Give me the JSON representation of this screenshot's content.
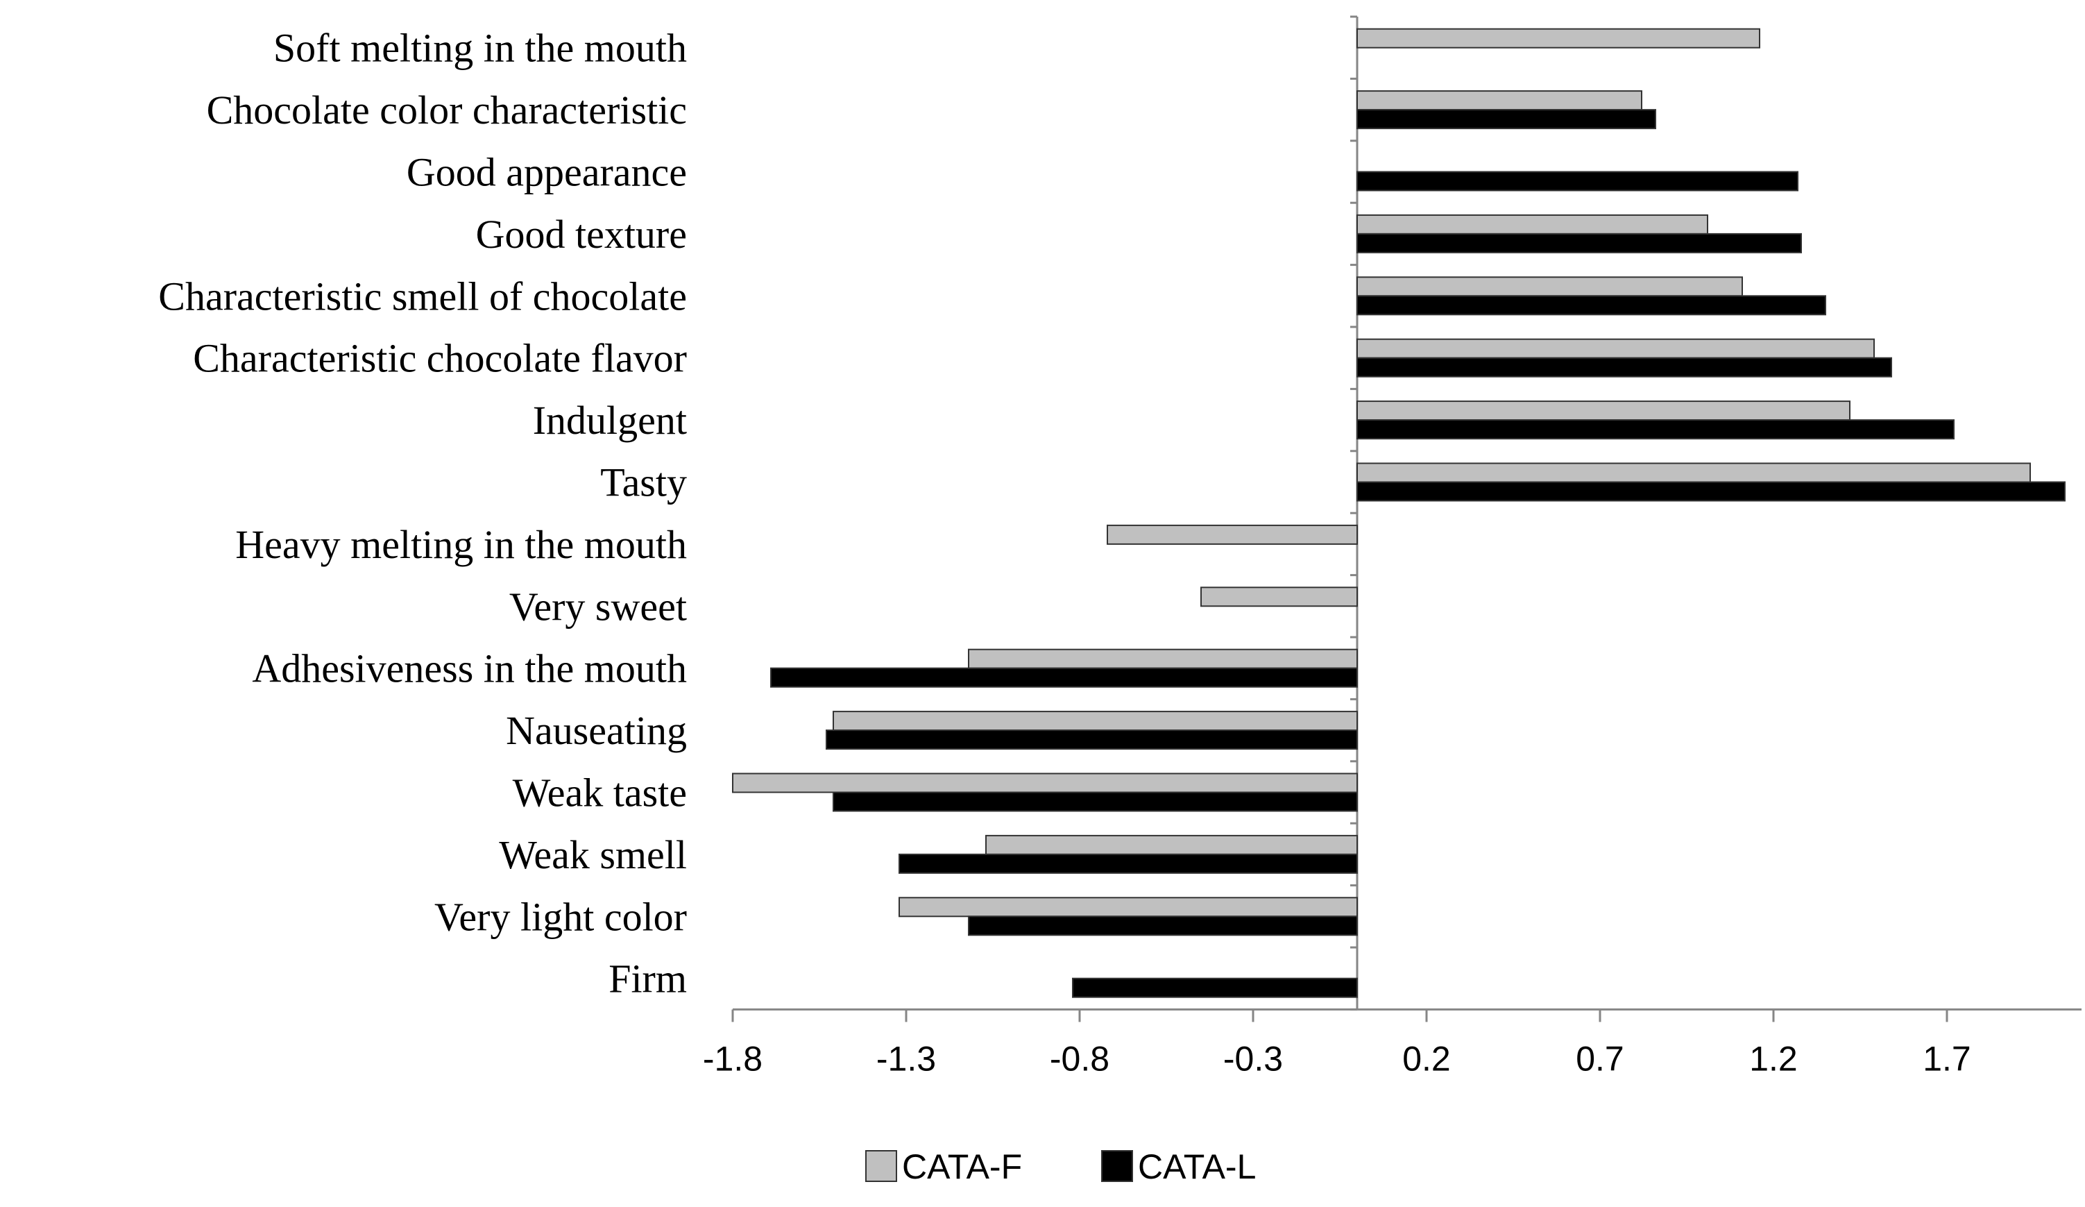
{
  "chart_data": {
    "type": "bar",
    "orientation": "horizontal",
    "title": "",
    "xlabel": "",
    "ylabel": "",
    "xlim": [
      -1.8,
      2.05
    ],
    "x_ticks": [
      -1.8,
      -1.3,
      -0.8,
      -0.3,
      0.2,
      0.7,
      1.2,
      1.7
    ],
    "x_tick_labels": [
      "-1.8",
      "-1.3",
      "-0.8",
      "-0.3",
      "0.2",
      "0.7",
      "1.2",
      "1.7"
    ],
    "grid": false,
    "legend_position": "bottom",
    "categories": [
      "Soft melting in the mouth",
      "Chocolate color characteristic",
      "Good appearance",
      "Good texture",
      "Characteristic smell of chocolate",
      "Characteristic chocolate flavor",
      "Indulgent",
      "Tasty",
      "Heavy melting in the mouth",
      "Very sweet",
      "Adhesiveness in the mouth",
      "Nauseating",
      "Weak taste",
      "Weak smell",
      "Very light color",
      "Firm"
    ],
    "series": [
      {
        "name": "CATA-F",
        "color": "#c0c0c0",
        "values": [
          1.16,
          0.82,
          0,
          1.01,
          1.11,
          1.49,
          1.42,
          1.94,
          -0.72,
          -0.45,
          -1.12,
          -1.51,
          -1.8,
          -1.07,
          -1.32,
          0
        ]
      },
      {
        "name": "CATA-L",
        "color": "#000000",
        "values": [
          0,
          0.86,
          1.27,
          1.28,
          1.35,
          1.54,
          1.72,
          2.04,
          0,
          0,
          -1.69,
          -1.53,
          -1.51,
          -1.32,
          -1.12,
          -0.82
        ]
      }
    ]
  }
}
